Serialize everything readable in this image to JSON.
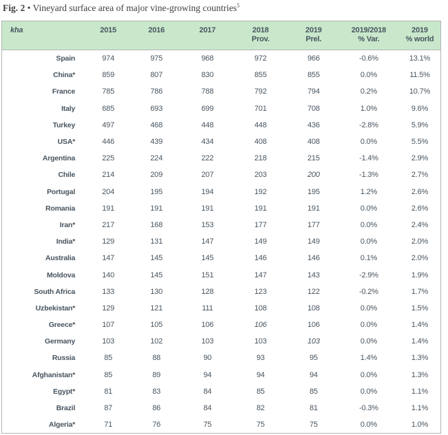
{
  "title": {
    "fig": "Fig. 2",
    "separator": "•",
    "text": "Vineyard surface area of major vine-growing countries",
    "footnote_marker": "5"
  },
  "table": {
    "unit": "kha",
    "columns": [
      {
        "key": "country",
        "label": "kha",
        "italic": true,
        "first": true
      },
      {
        "key": "y2015",
        "label": "2015"
      },
      {
        "key": "y2016",
        "label": "2016"
      },
      {
        "key": "y2017",
        "label": "2017"
      },
      {
        "key": "y2018_prov",
        "label": "2018",
        "sub": "Prov."
      },
      {
        "key": "y2019_prel",
        "label": "2019",
        "sub": "Prel."
      },
      {
        "key": "var_2019_2018",
        "label": "2019/2018",
        "sub": "% Var."
      },
      {
        "key": "world_share_2019",
        "label": "2019",
        "sub": "% world"
      }
    ],
    "rows": [
      [
        "Spain",
        "974",
        "975",
        "968",
        "972",
        "966",
        "-0.6%",
        "13.1%"
      ],
      [
        "China*",
        "859",
        "807",
        "830",
        "855",
        "855",
        "0.0%",
        "11.5%"
      ],
      [
        "France",
        "785",
        "786",
        "788",
        "792",
        "794",
        "0.2%",
        "10.7%"
      ],
      [
        "Italy",
        "685",
        "693",
        "699",
        "701",
        "708",
        "1.0%",
        "9.6%"
      ],
      [
        "Turkey",
        "497",
        "468",
        "448",
        "448",
        "436",
        "-2.8%",
        "5.9%"
      ],
      [
        "USA*",
        "446",
        "439",
        "434",
        "408",
        "408",
        "0.0%",
        "5.5%"
      ],
      [
        "Argentina",
        "225",
        "224",
        "222",
        "218",
        "215",
        "-1.4%",
        "2.9%"
      ],
      [
        "Chile",
        "214",
        "209",
        "207",
        "203",
        "200",
        "-1.3%",
        "2.7%"
      ],
      [
        "Portugal",
        "204",
        "195",
        "194",
        "192",
        "195",
        "1.2%",
        "2.6%"
      ],
      [
        "Romania",
        "191",
        "191",
        "191",
        "191",
        "191",
        "0.0%",
        "2.6%"
      ],
      [
        "Iran*",
        "217",
        "168",
        "153",
        "177",
        "177",
        "0.0%",
        "2.4%"
      ],
      [
        "India*",
        "129",
        "131",
        "147",
        "149",
        "149",
        "0.0%",
        "2.0%"
      ],
      [
        "Australia",
        "147",
        "145",
        "145",
        "146",
        "146",
        "0.1%",
        "2.0%"
      ],
      [
        "Moldova",
        "140",
        "145",
        "151",
        "147",
        "143",
        "-2.9%",
        "1.9%"
      ],
      [
        "South Africa",
        "133",
        "130",
        "128",
        "123",
        "122",
        "-0.2%",
        "1.7%"
      ],
      [
        "Uzbekistan*",
        "129",
        "121",
        "111",
        "108",
        "108",
        "0.0%",
        "1.5%"
      ],
      [
        "Greece*",
        "107",
        "105",
        "106",
        "106",
        "106",
        "0.0%",
        "1.4%"
      ],
      [
        "Germany",
        "103",
        "102",
        "103",
        "103",
        "103",
        "0.0%",
        "1.4%"
      ],
      [
        "Russia",
        "85",
        "88",
        "90",
        "93",
        "95",
        "1.4%",
        "1.3%"
      ],
      [
        "Afghanistan*",
        "85",
        "89",
        "94",
        "94",
        "94",
        "0.0%",
        "1.3%"
      ],
      [
        "Egypt*",
        "81",
        "83",
        "84",
        "85",
        "85",
        "0.0%",
        "1.1%"
      ],
      [
        "Brazil",
        "87",
        "86",
        "84",
        "82",
        "81",
        "-0.3%",
        "1.1%"
      ],
      [
        "Algeria*",
        "71",
        "76",
        "75",
        "75",
        "75",
        "0.0%",
        "1.0%"
      ]
    ],
    "italic_cells": [
      [
        7,
        5
      ],
      [
        16,
        4
      ],
      [
        17,
        5
      ]
    ]
  },
  "colors": {
    "header_bg": "#c9e8cb",
    "text": "#47545f",
    "border": "#b3b3b3",
    "title_text": "#3f3f3f"
  }
}
